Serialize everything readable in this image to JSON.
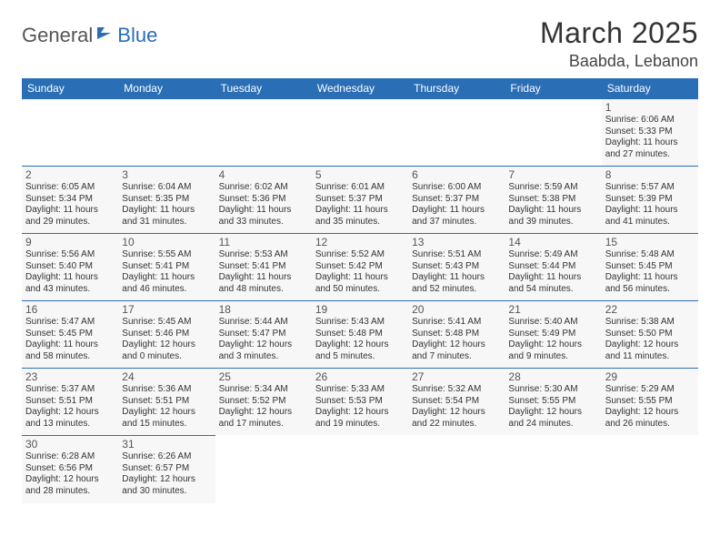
{
  "logo": {
    "part1": "General",
    "part2": "Blue"
  },
  "title": "March 2025",
  "location": "Baabda, Lebanon",
  "header_bg": "#2a6eb6",
  "header_fg": "#ffffff",
  "cell_bg": "#f7f7f7",
  "cell_border": "#2a6eb6",
  "weekdays": [
    "Sunday",
    "Monday",
    "Tuesday",
    "Wednesday",
    "Thursday",
    "Friday",
    "Saturday"
  ],
  "weeks": [
    [
      null,
      null,
      null,
      null,
      null,
      null,
      {
        "d": "1",
        "sr": "6:06 AM",
        "ss": "5:33 PM",
        "dl": "11 hours and 27 minutes."
      }
    ],
    [
      {
        "d": "2",
        "sr": "6:05 AM",
        "ss": "5:34 PM",
        "dl": "11 hours and 29 minutes."
      },
      {
        "d": "3",
        "sr": "6:04 AM",
        "ss": "5:35 PM",
        "dl": "11 hours and 31 minutes."
      },
      {
        "d": "4",
        "sr": "6:02 AM",
        "ss": "5:36 PM",
        "dl": "11 hours and 33 minutes."
      },
      {
        "d": "5",
        "sr": "6:01 AM",
        "ss": "5:37 PM",
        "dl": "11 hours and 35 minutes."
      },
      {
        "d": "6",
        "sr": "6:00 AM",
        "ss": "5:37 PM",
        "dl": "11 hours and 37 minutes."
      },
      {
        "d": "7",
        "sr": "5:59 AM",
        "ss": "5:38 PM",
        "dl": "11 hours and 39 minutes."
      },
      {
        "d": "8",
        "sr": "5:57 AM",
        "ss": "5:39 PM",
        "dl": "11 hours and 41 minutes."
      }
    ],
    [
      {
        "d": "9",
        "sr": "5:56 AM",
        "ss": "5:40 PM",
        "dl": "11 hours and 43 minutes."
      },
      {
        "d": "10",
        "sr": "5:55 AM",
        "ss": "5:41 PM",
        "dl": "11 hours and 46 minutes."
      },
      {
        "d": "11",
        "sr": "5:53 AM",
        "ss": "5:41 PM",
        "dl": "11 hours and 48 minutes."
      },
      {
        "d": "12",
        "sr": "5:52 AM",
        "ss": "5:42 PM",
        "dl": "11 hours and 50 minutes."
      },
      {
        "d": "13",
        "sr": "5:51 AM",
        "ss": "5:43 PM",
        "dl": "11 hours and 52 minutes."
      },
      {
        "d": "14",
        "sr": "5:49 AM",
        "ss": "5:44 PM",
        "dl": "11 hours and 54 minutes."
      },
      {
        "d": "15",
        "sr": "5:48 AM",
        "ss": "5:45 PM",
        "dl": "11 hours and 56 minutes."
      }
    ],
    [
      {
        "d": "16",
        "sr": "5:47 AM",
        "ss": "5:45 PM",
        "dl": "11 hours and 58 minutes."
      },
      {
        "d": "17",
        "sr": "5:45 AM",
        "ss": "5:46 PM",
        "dl": "12 hours and 0 minutes."
      },
      {
        "d": "18",
        "sr": "5:44 AM",
        "ss": "5:47 PM",
        "dl": "12 hours and 3 minutes."
      },
      {
        "d": "19",
        "sr": "5:43 AM",
        "ss": "5:48 PM",
        "dl": "12 hours and 5 minutes."
      },
      {
        "d": "20",
        "sr": "5:41 AM",
        "ss": "5:48 PM",
        "dl": "12 hours and 7 minutes."
      },
      {
        "d": "21",
        "sr": "5:40 AM",
        "ss": "5:49 PM",
        "dl": "12 hours and 9 minutes."
      },
      {
        "d": "22",
        "sr": "5:38 AM",
        "ss": "5:50 PM",
        "dl": "12 hours and 11 minutes."
      }
    ],
    [
      {
        "d": "23",
        "sr": "5:37 AM",
        "ss": "5:51 PM",
        "dl": "12 hours and 13 minutes."
      },
      {
        "d": "24",
        "sr": "5:36 AM",
        "ss": "5:51 PM",
        "dl": "12 hours and 15 minutes."
      },
      {
        "d": "25",
        "sr": "5:34 AM",
        "ss": "5:52 PM",
        "dl": "12 hours and 17 minutes."
      },
      {
        "d": "26",
        "sr": "5:33 AM",
        "ss": "5:53 PM",
        "dl": "12 hours and 19 minutes."
      },
      {
        "d": "27",
        "sr": "5:32 AM",
        "ss": "5:54 PM",
        "dl": "12 hours and 22 minutes."
      },
      {
        "d": "28",
        "sr": "5:30 AM",
        "ss": "5:55 PM",
        "dl": "12 hours and 24 minutes."
      },
      {
        "d": "29",
        "sr": "5:29 AM",
        "ss": "5:55 PM",
        "dl": "12 hours and 26 minutes."
      }
    ],
    [
      {
        "d": "30",
        "sr": "6:28 AM",
        "ss": "6:56 PM",
        "dl": "12 hours and 28 minutes."
      },
      {
        "d": "31",
        "sr": "6:26 AM",
        "ss": "6:57 PM",
        "dl": "12 hours and 30 minutes."
      },
      null,
      null,
      null,
      null,
      null
    ]
  ]
}
